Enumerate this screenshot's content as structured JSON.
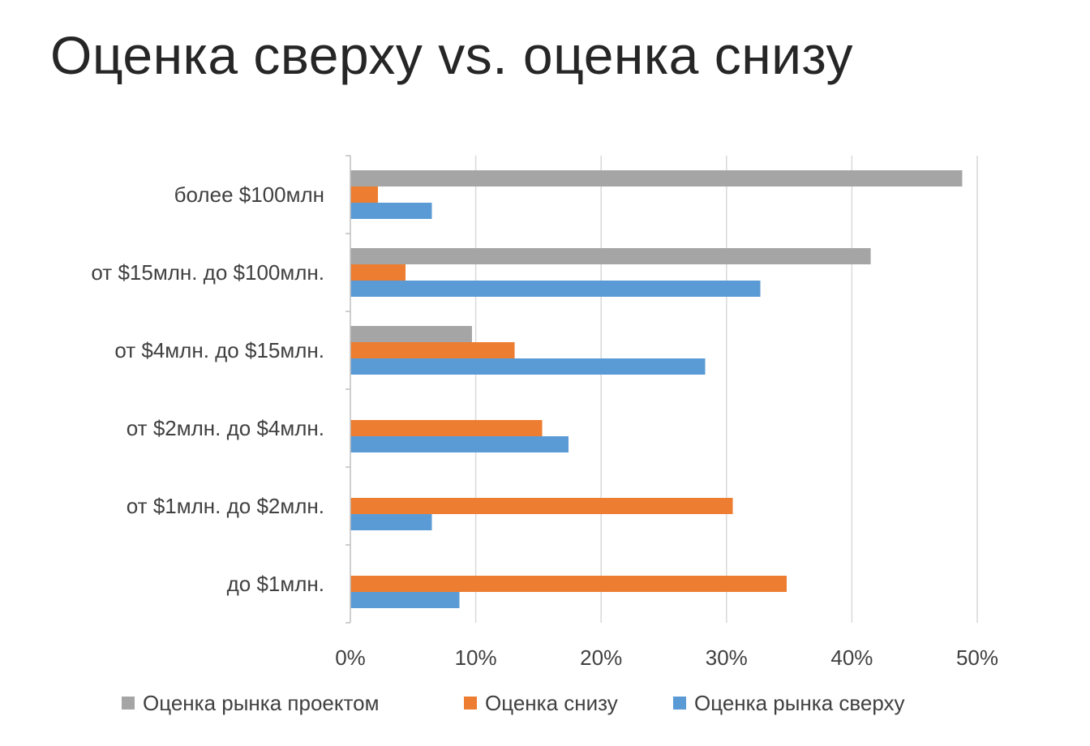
{
  "title": "Оценка сверху vs. оценка снизу",
  "chart_data": {
    "type": "bar",
    "orientation": "horizontal",
    "title": "Оценка сверху vs. оценка снизу",
    "xlabel": "",
    "ylabel": "",
    "xlim": [
      0,
      50
    ],
    "x_ticks": [
      "0%",
      "10%",
      "20%",
      "30%",
      "40%",
      "50%"
    ],
    "grid": true,
    "legend_position": "bottom",
    "categories": [
      "более $100млн",
      "от $15млн. до $100млн.",
      "от $4млн. до $15млн.",
      "от $2млн. до $4млн.",
      "от $1млн. до $2млн.",
      "до $1млн."
    ],
    "series": [
      {
        "name": "Оценка рынка проектом",
        "color": "#a5a5a5",
        "values": [
          48.8,
          41.5,
          9.7,
          0,
          0,
          0
        ]
      },
      {
        "name": "Оценка снизу",
        "color": "#ed7d31",
        "values": [
          2.2,
          4.4,
          13.1,
          15.3,
          30.5,
          34.8
        ]
      },
      {
        "name": "Оценка рынка сверху",
        "color": "#5b9bd5",
        "values": [
          6.5,
          32.7,
          28.3,
          17.4,
          6.5,
          8.7
        ]
      }
    ]
  }
}
